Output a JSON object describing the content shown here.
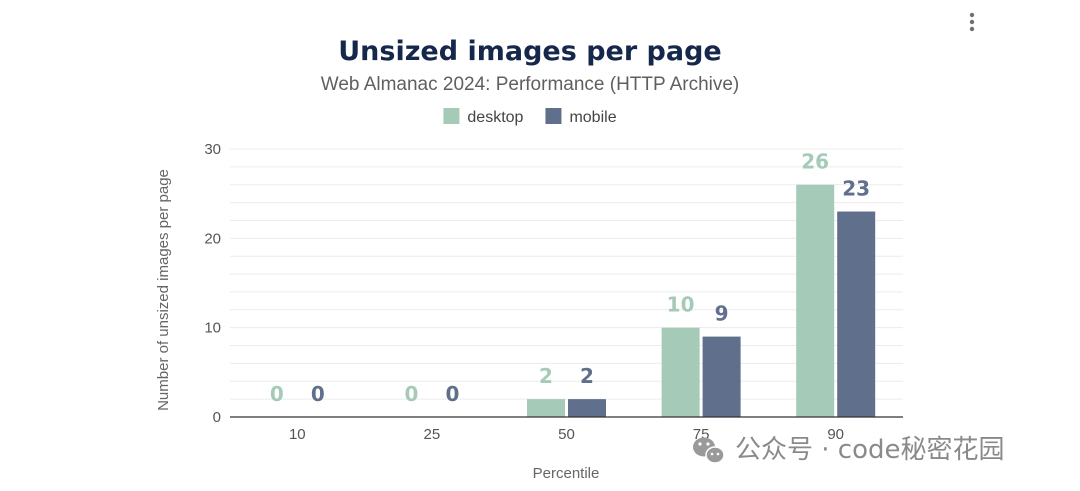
{
  "chart_data": {
    "type": "bar",
    "title": "Unsized images per page",
    "subtitle": "Web Almanac 2024: Performance (HTTP Archive)",
    "xlabel": "Percentile",
    "ylabel": "Number of unsized images per page",
    "categories": [
      "10",
      "25",
      "50",
      "75",
      "90"
    ],
    "series": [
      {
        "name": "desktop",
        "values": [
          0,
          0,
          2,
          10,
          26
        ],
        "color": "#a6cab8"
      },
      {
        "name": "mobile",
        "values": [
          0,
          0,
          2,
          9,
          23
        ],
        "color": "#5f6f8c"
      }
    ],
    "ylim": [
      0,
      30
    ],
    "yticks": [
      0,
      10,
      20,
      30
    ],
    "grid": true,
    "legend": "top-center"
  },
  "menu": {
    "icon": "more-vertical-icon"
  },
  "watermark": {
    "text": "公众号 · code秘密花园",
    "icon": "wechat-icon"
  }
}
